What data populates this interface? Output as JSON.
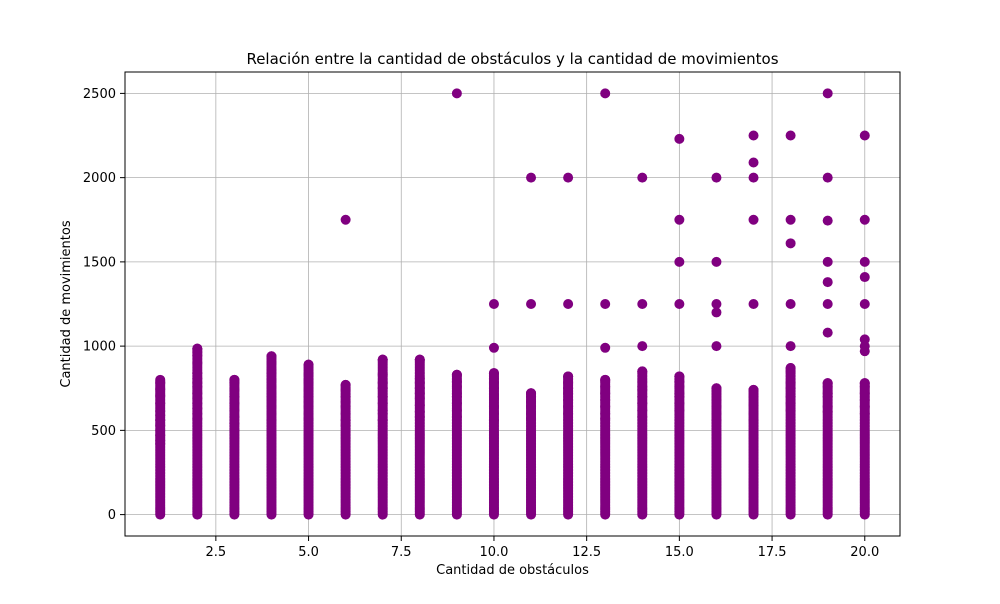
{
  "chart_data": {
    "type": "scatter",
    "title": "Relación entre la cantidad de obstáculos y la cantidad de movimientos",
    "xlabel": "Cantidad de obstáculos",
    "ylabel": "Cantidad de movimientos",
    "xlim": [
      0.05,
      20.95
    ],
    "ylim": [
      -127,
      2627
    ],
    "xticks": [
      2.5,
      5.0,
      7.5,
      10.0,
      12.5,
      15.0,
      17.5,
      20.0
    ],
    "xtick_labels": [
      "2.5",
      "5.0",
      "7.5",
      "10.0",
      "12.5",
      "15.0",
      "17.5",
      "20.0"
    ],
    "yticks": [
      0,
      500,
      1000,
      1500,
      2000,
      2500
    ],
    "ytick_labels": [
      "0",
      "500",
      "1000",
      "1500",
      "2000",
      "2500"
    ],
    "grid": true,
    "color": "#800080",
    "columns": [
      {
        "x": 1,
        "range": [
          0,
          800
        ],
        "extras": [
          780,
          745,
          705,
          660,
          615,
          590,
          560,
          530,
          500,
          470,
          440,
          420
        ]
      },
      {
        "x": 2,
        "range": [
          0,
          985
        ],
        "extras": [
          985,
          965,
          945,
          900,
          840,
          810,
          780,
          760,
          720,
          690,
          660,
          630,
          600,
          570
        ]
      },
      {
        "x": 3,
        "range": [
          0,
          800
        ],
        "extras": [
          800,
          780,
          740,
          700,
          660,
          620,
          580,
          540,
          500
        ]
      },
      {
        "x": 4,
        "range": [
          0,
          940
        ],
        "extras": [
          940,
          900,
          860,
          840,
          800,
          760,
          720,
          700,
          680,
          640,
          600,
          560
        ]
      },
      {
        "x": 5,
        "range": [
          0,
          890
        ],
        "extras": [
          890,
          830,
          800,
          780,
          740,
          700,
          670,
          640,
          600,
          570
        ]
      },
      {
        "x": 6,
        "range": [
          0,
          770
        ],
        "extras": [
          1750,
          770,
          740,
          700,
          670,
          640,
          600,
          560,
          530
        ]
      },
      {
        "x": 7,
        "range": [
          0,
          920
        ],
        "extras": [
          920,
          830,
          780,
          750,
          700,
          660,
          620,
          600,
          560
        ]
      },
      {
        "x": 8,
        "range": [
          0,
          920
        ],
        "extras": [
          920,
          810,
          780,
          750,
          720,
          690,
          650,
          610,
          580
        ]
      },
      {
        "x": 9,
        "range": [
          0,
          830
        ],
        "extras": [
          2500,
          830,
          790,
          760,
          720,
          700,
          660,
          620,
          580
        ]
      },
      {
        "x": 10,
        "range": [
          0,
          840
        ],
        "extras": [
          1250,
          990,
          840,
          810,
          780,
          750,
          710,
          690,
          640,
          600,
          560
        ]
      },
      {
        "x": 11,
        "range": [
          0,
          720
        ],
        "extras": [
          2000,
          1250,
          720,
          700,
          670,
          640,
          600,
          570
        ]
      },
      {
        "x": 12,
        "range": [
          0,
          820
        ],
        "extras": [
          2000,
          1250,
          820,
          780,
          750,
          720,
          680,
          640,
          600
        ]
      },
      {
        "x": 13,
        "range": [
          0,
          800
        ],
        "extras": [
          2500,
          1250,
          990,
          800,
          760,
          720,
          680,
          640,
          600,
          570
        ]
      },
      {
        "x": 14,
        "range": [
          0,
          850
        ],
        "extras": [
          2000,
          1250,
          1000,
          850,
          760,
          740,
          700,
          660,
          620,
          580
        ]
      },
      {
        "x": 15,
        "range": [
          0,
          820
        ],
        "extras": [
          2230,
          1750,
          1500,
          1250,
          820,
          790,
          760,
          720,
          700,
          660,
          620
        ]
      },
      {
        "x": 16,
        "range": [
          0,
          750
        ],
        "extras": [
          2000,
          1500,
          1250,
          1200,
          1000,
          750,
          680,
          640,
          600,
          560
        ]
      },
      {
        "x": 17,
        "range": [
          0,
          740
        ],
        "extras": [
          2250,
          2090,
          2000,
          1750,
          1250,
          740,
          700,
          650,
          600,
          560
        ]
      },
      {
        "x": 18,
        "range": [
          0,
          870
        ],
        "extras": [
          2250,
          1750,
          1610,
          1250,
          1000,
          870,
          850,
          780,
          750,
          700,
          660,
          620
        ]
      },
      {
        "x": 19,
        "range": [
          0,
          780
        ],
        "extras": [
          2500,
          2000,
          1745,
          1500,
          1380,
          1250,
          1080,
          780,
          760,
          720,
          700,
          640,
          610
        ]
      },
      {
        "x": 20,
        "range": [
          0,
          780
        ],
        "extras": [
          2250,
          1750,
          1500,
          1410,
          1250,
          1040,
          1000,
          970,
          780,
          760,
          720,
          680,
          640,
          600
        ]
      }
    ]
  }
}
